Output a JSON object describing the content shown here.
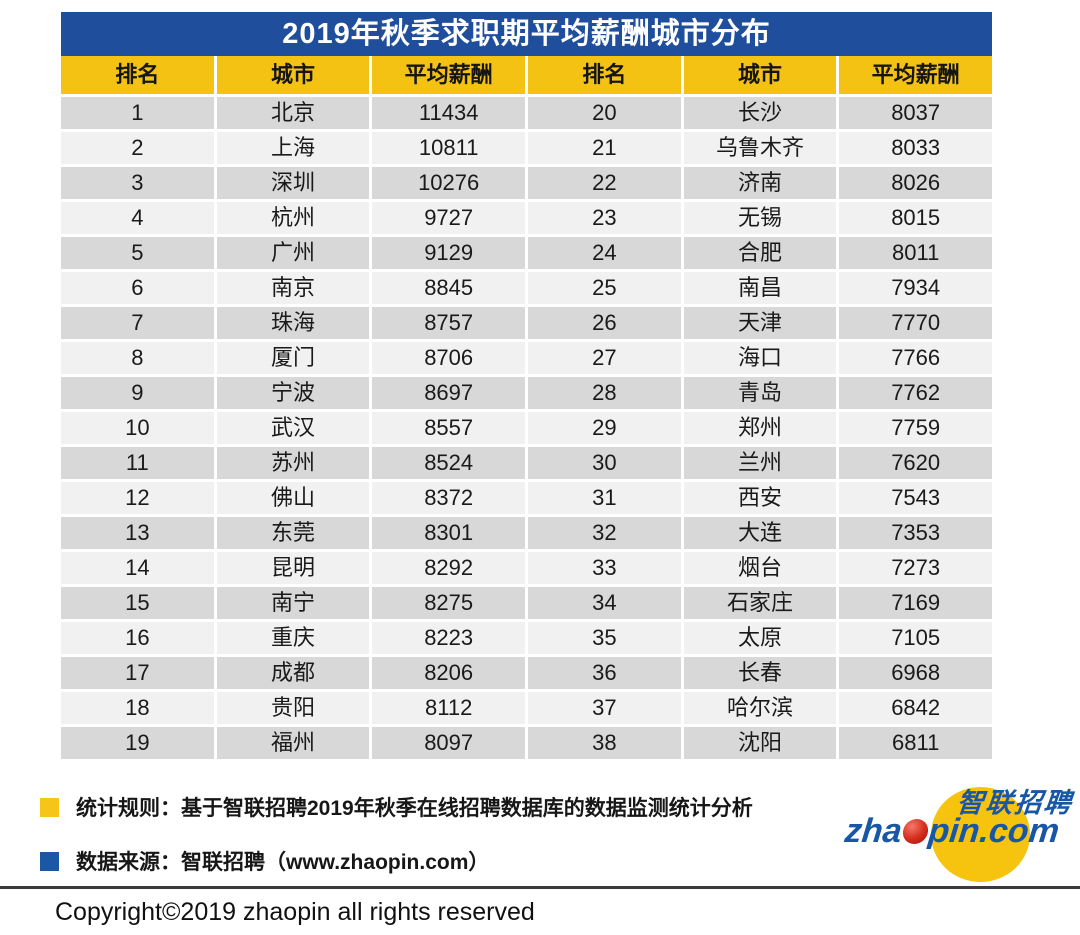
{
  "title": "2019年秋季求职期平均薪酬城市分布",
  "table": {
    "headers": [
      "排名",
      "城市",
      "平均薪酬",
      "排名",
      "城市",
      "平均薪酬"
    ]
  },
  "chart_data": {
    "type": "table",
    "title": "2019年秋季求职期平均薪酬城市分布",
    "columns": [
      "排名",
      "城市",
      "平均薪酬"
    ],
    "rows": [
      [
        1,
        "北京",
        11434
      ],
      [
        2,
        "上海",
        10811
      ],
      [
        3,
        "深圳",
        10276
      ],
      [
        4,
        "杭州",
        9727
      ],
      [
        5,
        "广州",
        9129
      ],
      [
        6,
        "南京",
        8845
      ],
      [
        7,
        "珠海",
        8757
      ],
      [
        8,
        "厦门",
        8706
      ],
      [
        9,
        "宁波",
        8697
      ],
      [
        10,
        "武汉",
        8557
      ],
      [
        11,
        "苏州",
        8524
      ],
      [
        12,
        "佛山",
        8372
      ],
      [
        13,
        "东莞",
        8301
      ],
      [
        14,
        "昆明",
        8292
      ],
      [
        15,
        "南宁",
        8275
      ],
      [
        16,
        "重庆",
        8223
      ],
      [
        17,
        "成都",
        8206
      ],
      [
        18,
        "贵阳",
        8112
      ],
      [
        19,
        "福州",
        8097
      ],
      [
        20,
        "长沙",
        8037
      ],
      [
        21,
        "乌鲁木齐",
        8033
      ],
      [
        22,
        "济南",
        8026
      ],
      [
        23,
        "无锡",
        8015
      ],
      [
        24,
        "合肥",
        8011
      ],
      [
        25,
        "南昌",
        7934
      ],
      [
        26,
        "天津",
        7770
      ],
      [
        27,
        "海口",
        7766
      ],
      [
        28,
        "青岛",
        7762
      ],
      [
        29,
        "郑州",
        7759
      ],
      [
        30,
        "兰州",
        7620
      ],
      [
        31,
        "西安",
        7543
      ],
      [
        32,
        "大连",
        7353
      ],
      [
        33,
        "烟台",
        7273
      ],
      [
        34,
        "石家庄",
        7169
      ],
      [
        35,
        "太原",
        7105
      ],
      [
        36,
        "长春",
        6968
      ],
      [
        37,
        "哈尔滨",
        6842
      ],
      [
        38,
        "沈阳",
        6811
      ]
    ],
    "layout": {
      "split_columns": 2,
      "rows_per_column": 19
    }
  },
  "notes": [
    {
      "marker_color": "#f5c518",
      "text": "统计规则：基于智联招聘2019年秋季在线招聘数据库的数据监测统计分析"
    },
    {
      "marker_color": "#1c57a5",
      "text": "数据来源：智联招聘（www.zhaopin.com）"
    }
  ],
  "logo": {
    "cn": "智联招聘",
    "domain_left": "zha",
    "domain_right": "pin.com"
  },
  "copyright": "Copyright©2019 zhaopin all rights reserved",
  "colors": {
    "title_bar": "#1f4f9c",
    "header_yellow": "#f3c213",
    "row_dark": "#d8d8d8",
    "row_light": "#f1f1f1",
    "logo_blue": "#1857a6",
    "logo_yellow": "#f6c40e",
    "logo_ball_red": "#d6301f"
  }
}
